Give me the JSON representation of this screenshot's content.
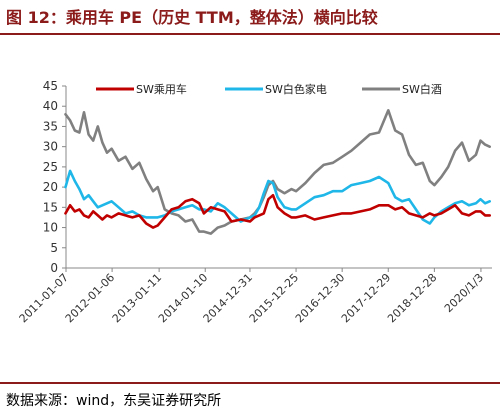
{
  "header": {
    "title": "图 12：乘用车 PE（历史 TTM，整体法）横向比较"
  },
  "footer": {
    "source": "数据来源：wind，东吴证券研究所"
  },
  "colors": {
    "accent": "#8B1A1A",
    "series_1": "#C00000",
    "series_2": "#1FB6E8",
    "series_3": "#808080",
    "axis": "#888888"
  },
  "chart_data": {
    "type": "line",
    "title": "",
    "xlabel": "",
    "ylabel": "",
    "ylim": [
      0,
      45
    ],
    "yticks": [
      0,
      5,
      10,
      15,
      20,
      25,
      30,
      35,
      40,
      45
    ],
    "xlim": [
      2011.01,
      2020.25
    ],
    "xtick_labels": [
      "2011-01-07",
      "2012-01-06",
      "2013-01-11",
      "2014-01-10",
      "2014-12-31",
      "2015-12-25",
      "2016-12-30",
      "2017-12-29",
      "2018-12-28",
      "2020/1/3"
    ],
    "xtick_positions": [
      2011.01,
      2012.01,
      2013.03,
      2014.03,
      2015.0,
      2016.0,
      2017.0,
      2018.0,
      2019.0,
      2020.01
    ],
    "grid": false,
    "legend": "top",
    "series": [
      {
        "name": "SW乘用车",
        "x": [
          2011.0,
          2011.1,
          2011.2,
          2011.3,
          2011.4,
          2011.5,
          2011.6,
          2011.7,
          2011.8,
          2011.9,
          2012.0,
          2012.15,
          2012.3,
          2012.45,
          2012.6,
          2012.75,
          2012.9,
          2013.0,
          2013.15,
          2013.3,
          2013.45,
          2013.6,
          2013.75,
          2013.9,
          2014.0,
          2014.15,
          2014.3,
          2014.45,
          2014.6,
          2014.8,
          2015.0,
          2015.1,
          2015.2,
          2015.3,
          2015.4,
          2015.5,
          2015.6,
          2015.75,
          2015.9,
          2016.0,
          2016.2,
          2016.4,
          2016.6,
          2016.8,
          2017.0,
          2017.2,
          2017.4,
          2017.6,
          2017.8,
          2018.0,
          2018.15,
          2018.3,
          2018.45,
          2018.6,
          2018.75,
          2018.9,
          2019.0,
          2019.15,
          2019.3,
          2019.45,
          2019.6,
          2019.75,
          2019.9,
          2020.0,
          2020.1,
          2020.2
        ],
        "values": [
          13.5,
          15.5,
          14.0,
          14.5,
          13.0,
          12.5,
          14.0,
          13.0,
          12.0,
          13.0,
          12.5,
          13.5,
          13.0,
          12.5,
          13.0,
          11.0,
          10.0,
          10.5,
          12.5,
          14.5,
          15.0,
          16.5,
          17.0,
          16.0,
          13.5,
          15.0,
          14.5,
          14.0,
          11.5,
          12.0,
          11.5,
          12.5,
          13.0,
          13.5,
          17.0,
          18.0,
          15.0,
          13.5,
          12.5,
          12.5,
          13.0,
          12.0,
          12.5,
          13.0,
          13.5,
          13.5,
          14.0,
          14.5,
          15.5,
          15.5,
          14.5,
          15.0,
          13.5,
          13.0,
          12.5,
          13.5,
          13.0,
          13.5,
          14.5,
          15.5,
          13.5,
          13.0,
          14.0,
          14.0,
          13.0,
          13.0
        ]
      },
      {
        "name": "SW白色家电",
        "x": [
          2011.0,
          2011.1,
          2011.2,
          2011.3,
          2011.4,
          2011.5,
          2011.6,
          2011.7,
          2011.8,
          2011.9,
          2012.0,
          2012.15,
          2012.3,
          2012.45,
          2012.6,
          2012.75,
          2012.9,
          2013.0,
          2013.15,
          2013.3,
          2013.45,
          2013.6,
          2013.75,
          2013.9,
          2014.0,
          2014.15,
          2014.3,
          2014.45,
          2014.6,
          2014.8,
          2015.0,
          2015.1,
          2015.2,
          2015.3,
          2015.4,
          2015.5,
          2015.6,
          2015.75,
          2015.9,
          2016.0,
          2016.2,
          2016.4,
          2016.6,
          2016.8,
          2017.0,
          2017.2,
          2017.4,
          2017.6,
          2017.8,
          2018.0,
          2018.15,
          2018.3,
          2018.45,
          2018.6,
          2018.75,
          2018.9,
          2019.0,
          2019.15,
          2019.3,
          2019.45,
          2019.6,
          2019.75,
          2019.9,
          2020.0,
          2020.1,
          2020.2
        ],
        "values": [
          20.0,
          24.0,
          21.5,
          19.5,
          17.0,
          18.0,
          16.5,
          15.0,
          15.5,
          16.0,
          16.5,
          15.0,
          13.5,
          14.0,
          13.0,
          12.5,
          12.5,
          12.5,
          13.0,
          14.0,
          14.5,
          15.0,
          15.5,
          14.5,
          14.5,
          14.0,
          16.0,
          15.0,
          13.5,
          11.5,
          12.5,
          13.0,
          15.0,
          18.5,
          21.5,
          21.0,
          17.5,
          15.0,
          14.5,
          14.5,
          16.0,
          17.5,
          18.0,
          19.0,
          19.0,
          20.5,
          21.0,
          21.5,
          22.5,
          21.0,
          17.5,
          16.5,
          17.0,
          14.5,
          12.0,
          11.0,
          12.5,
          14.0,
          15.0,
          16.0,
          16.5,
          15.5,
          16.0,
          17.0,
          16.0,
          16.5
        ]
      },
      {
        "name": "SW白酒",
        "x": [
          2011.0,
          2011.1,
          2011.2,
          2011.3,
          2011.4,
          2011.5,
          2011.6,
          2011.7,
          2011.8,
          2011.9,
          2012.0,
          2012.15,
          2012.3,
          2012.45,
          2012.6,
          2012.75,
          2012.9,
          2013.0,
          2013.15,
          2013.3,
          2013.45,
          2013.6,
          2013.75,
          2013.9,
          2014.0,
          2014.15,
          2014.3,
          2014.45,
          2014.6,
          2014.8,
          2015.0,
          2015.1,
          2015.2,
          2015.3,
          2015.4,
          2015.5,
          2015.6,
          2015.75,
          2015.9,
          2016.0,
          2016.2,
          2016.4,
          2016.6,
          2016.8,
          2017.0,
          2017.2,
          2017.4,
          2017.6,
          2017.8,
          2018.0,
          2018.15,
          2018.3,
          2018.45,
          2018.6,
          2018.75,
          2018.9,
          2019.0,
          2019.15,
          2019.3,
          2019.45,
          2019.6,
          2019.75,
          2019.9,
          2020.0,
          2020.1,
          2020.2
        ],
        "values": [
          38.0,
          36.5,
          34.0,
          33.5,
          38.5,
          33.0,
          31.5,
          35.0,
          31.0,
          28.5,
          29.5,
          26.5,
          27.5,
          24.5,
          26.0,
          22.0,
          19.0,
          20.0,
          14.5,
          13.5,
          13.0,
          11.5,
          12.0,
          9.0,
          9.0,
          8.5,
          10.0,
          10.5,
          11.5,
          12.0,
          12.5,
          13.5,
          15.0,
          17.5,
          20.5,
          21.5,
          19.5,
          18.5,
          19.5,
          19.0,
          21.0,
          23.5,
          25.5,
          26.0,
          27.5,
          29.0,
          31.0,
          33.0,
          33.5,
          39.0,
          34.0,
          33.0,
          28.0,
          25.5,
          26.0,
          21.5,
          20.5,
          22.5,
          25.0,
          29.0,
          31.0,
          26.5,
          28.0,
          31.5,
          30.5,
          30.0
        ]
      }
    ]
  }
}
